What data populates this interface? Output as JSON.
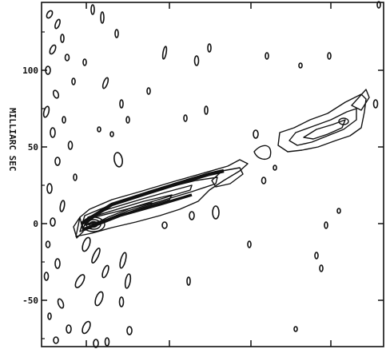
{
  "chart_data": {
    "type": "contour",
    "title": "",
    "ylabel": "MILLIARC SEC",
    "xlabel": "",
    "ylim": [
      -80,
      145
    ],
    "y_ticks": [
      100,
      50,
      0,
      -50
    ],
    "y_tick_labels": [
      "100",
      "50",
      "0",
      "-50"
    ],
    "grid": false,
    "legend": "none",
    "colors": {
      "ink": "#111111",
      "background": "#ffffff"
    },
    "features": {
      "core": {
        "x_mas": -60,
        "y_mas": 0
      },
      "jet_direction_deg": 22,
      "jet_extent_mas": [
        -60,
        180
      ],
      "outer_knot": {
        "x_mas": 170,
        "y_mas": 65
      }
    }
  }
}
